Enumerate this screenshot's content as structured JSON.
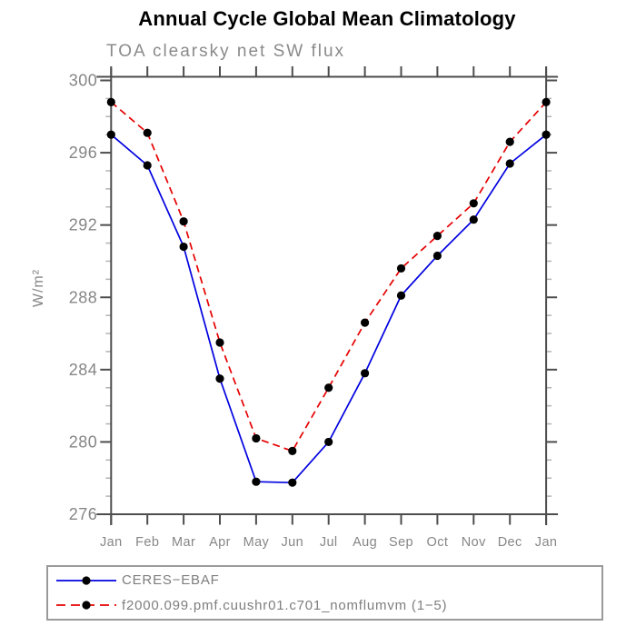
{
  "chart_data": {
    "type": "line",
    "title": "Annual Cycle Global Mean Climatology",
    "subtitle": "TOA clearsky net SW flux",
    "ylabel": "W/m²",
    "xlabel": "",
    "categories": [
      "Jan",
      "Feb",
      "Mar",
      "Apr",
      "May",
      "Jun",
      "Jul",
      "Aug",
      "Sep",
      "Oct",
      "Nov",
      "Dec",
      "Jan"
    ],
    "ylim": [
      276,
      300
    ],
    "ytick_step_major": 4,
    "ytick_step_minor": 1,
    "grid": false,
    "legend_position": "bottom-left-box",
    "axis_color": "#4d4d4d",
    "minor_tick_color": "#b3b3b3",
    "text_color": "#868686",
    "marker_color": "#000000",
    "series": [
      {
        "name": "CERES−EBAF",
        "color": "#0000e0",
        "line_style": "solid",
        "marker": "filled-circle",
        "values": [
          297.0,
          295.3,
          290.8,
          283.5,
          277.8,
          277.75,
          280.0,
          283.8,
          288.1,
          290.3,
          292.3,
          295.4,
          297.0
        ]
      },
      {
        "name": "f2000.099.pmf.cuushr01.c701_nomflumvm (1−5)",
        "color": "#e60000",
        "line_style": "dashed",
        "marker": "filled-circle",
        "values": [
          298.8,
          297.1,
          292.2,
          285.5,
          280.2,
          279.5,
          283.0,
          286.6,
          289.6,
          291.4,
          293.2,
          296.6,
          298.8
        ]
      }
    ]
  }
}
